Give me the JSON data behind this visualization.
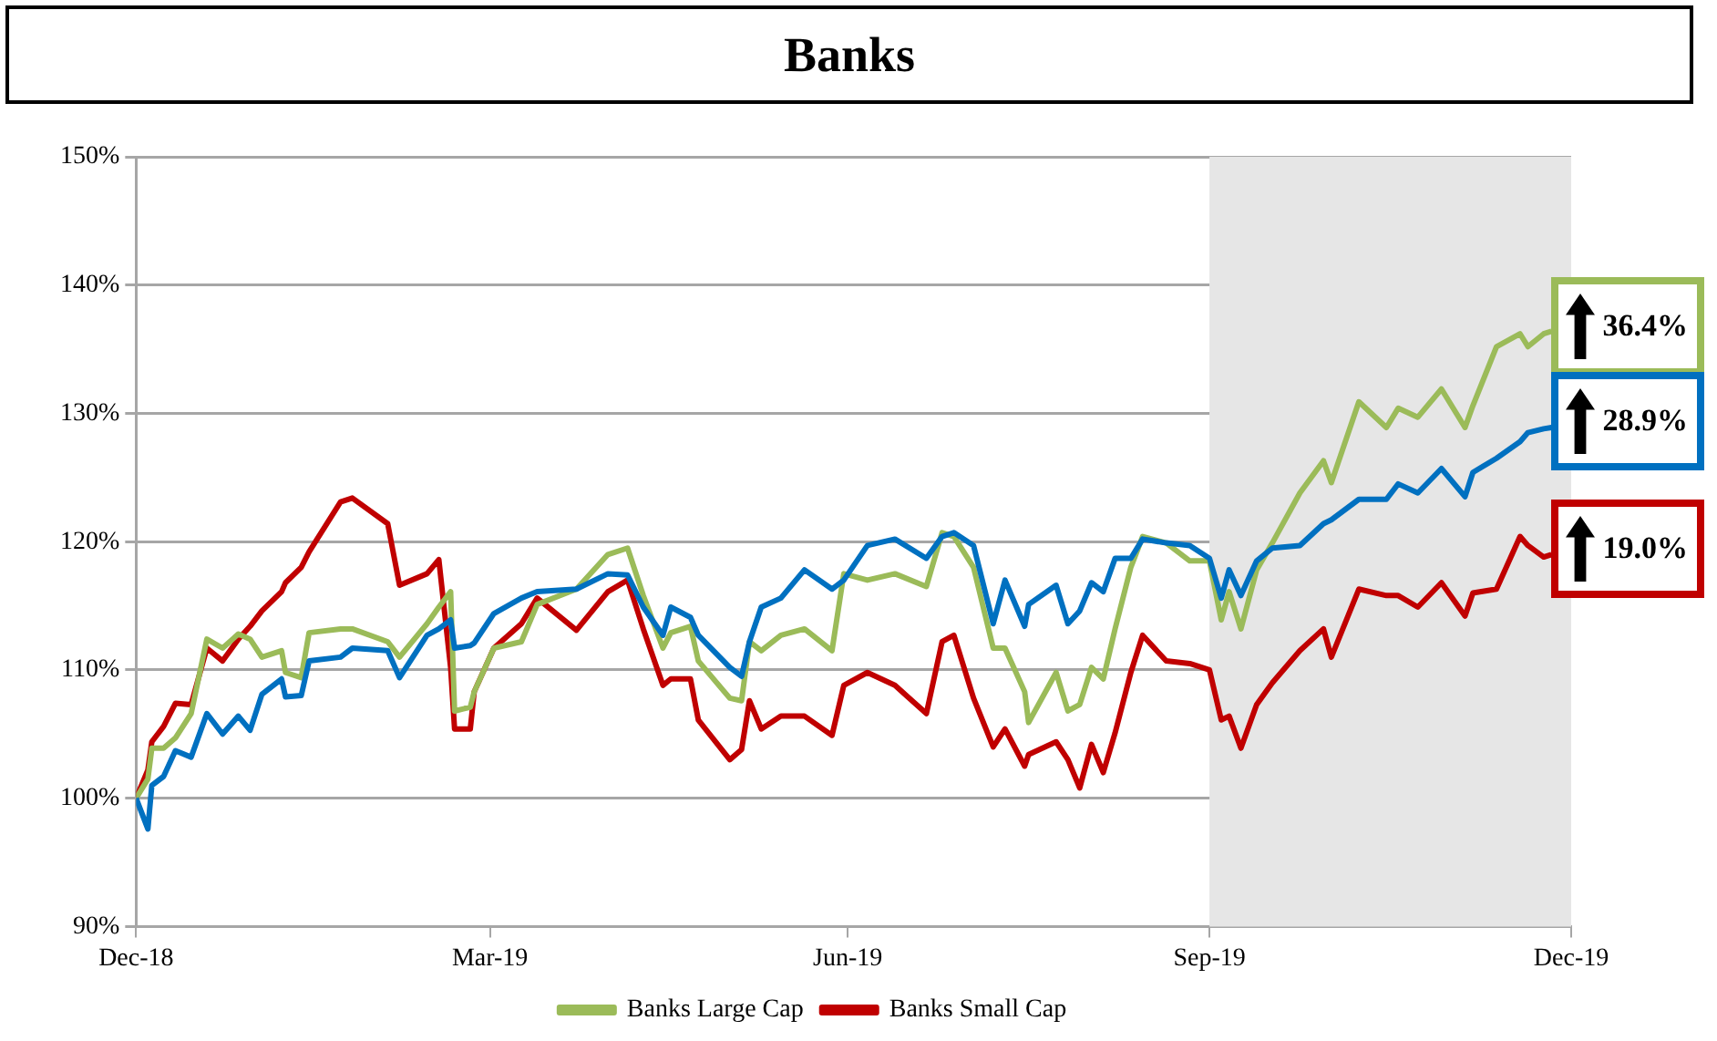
{
  "chart_data": {
    "type": "line",
    "title": "Banks",
    "x": [
      "2018-12-31",
      "2019-01-03",
      "2019-01-04",
      "2019-01-07",
      "2019-01-10",
      "2019-01-14",
      "2019-01-18",
      "2019-01-22",
      "2019-01-26",
      "2019-01-29",
      "2019-02-01",
      "2019-02-06",
      "2019-02-07",
      "2019-02-11",
      "2019-02-13",
      "2019-02-21",
      "2019-02-24",
      "2019-03-05",
      "2019-03-08",
      "2019-03-15",
      "2019-03-18",
      "2019-03-21",
      "2019-03-22",
      "2019-03-26",
      "2019-03-27",
      "2019-04-01",
      "2019-04-08",
      "2019-04-12",
      "2019-04-22",
      "2019-04-30",
      "2019-05-05",
      "2019-05-09",
      "2019-05-14",
      "2019-05-16",
      "2019-05-21",
      "2019-05-23",
      "2019-05-31",
      "2019-06-03",
      "2019-06-05",
      "2019-06-08",
      "2019-06-13",
      "2019-06-19",
      "2019-06-26",
      "2019-06-29",
      "2019-07-05",
      "2019-07-12",
      "2019-07-20",
      "2019-07-24",
      "2019-07-27",
      "2019-08-01",
      "2019-08-06",
      "2019-08-09",
      "2019-08-14",
      "2019-08-15",
      "2019-08-22",
      "2019-08-25",
      "2019-08-28",
      "2019-08-31",
      "2019-09-03",
      "2019-09-06",
      "2019-09-10",
      "2019-09-13",
      "2019-09-19",
      "2019-09-25",
      "2019-09-30",
      "2019-10-03",
      "2019-10-05",
      "2019-10-08",
      "2019-10-12",
      "2019-10-16",
      "2019-10-23",
      "2019-10-29",
      "2019-10-31",
      "2019-11-07",
      "2019-11-14",
      "2019-11-17",
      "2019-11-22",
      "2019-11-28",
      "2019-12-04",
      "2019-12-06",
      "2019-12-12",
      "2019-12-18",
      "2019-12-20",
      "2019-12-24",
      "2019-12-26"
    ],
    "series": [
      {
        "color": "#0070c0",
        "values": [
          100,
          97.6,
          101,
          101.7,
          103.7,
          103.2,
          106.6,
          105,
          106.4,
          105.3,
          108.1,
          109.3,
          107.9,
          108,
          110.7,
          111,
          111.7,
          111.5,
          109.4,
          112.7,
          113.2,
          113.9,
          111.7,
          111.9,
          112.1,
          114.4,
          115.6,
          116.1,
          116.3,
          117.5,
          117.4,
          114.9,
          112.7,
          114.9,
          114.1,
          112.7,
          110.2,
          109.5,
          112.2,
          114.9,
          115.6,
          117.8,
          116.3,
          117,
          119.7,
          120.2,
          118.7,
          120.4,
          120.7,
          119.7,
          113.6,
          117,
          113.4,
          115.1,
          116.6,
          113.6,
          114.6,
          116.8,
          116.1,
          118.7,
          118.7,
          120.2,
          119.9,
          119.7,
          118.7,
          115.6,
          117.8,
          115.8,
          118.5,
          119.5,
          119.7,
          121.4,
          121.7,
          123.3,
          123.3,
          124.5,
          123.8,
          125.7,
          123.5,
          125.4,
          126.5,
          127.8,
          128.5,
          128.8,
          128.9
        ]
      },
      {
        "name": "Banks Large Cap",
        "color": "#9bbb59",
        "values": [
          100,
          101.5,
          103.9,
          103.9,
          104.7,
          106.6,
          112.4,
          111.7,
          112.8,
          112.4,
          111,
          111.5,
          109.8,
          109.4,
          112.9,
          113.2,
          113.2,
          112.2,
          111,
          113.6,
          114.9,
          116.1,
          106.8,
          107.1,
          108.3,
          111.7,
          112.2,
          115.1,
          116.3,
          119,
          119.5,
          115.8,
          111.7,
          112.9,
          113.4,
          110.7,
          107.8,
          107.6,
          112.2,
          111.5,
          112.7,
          113.2,
          111.5,
          117.5,
          117,
          117.5,
          116.5,
          120.7,
          120.4,
          118,
          111.7,
          111.7,
          108.3,
          105.9,
          109.8,
          106.8,
          107.3,
          110.2,
          109.3,
          113.2,
          118,
          120.4,
          119.9,
          118.5,
          118.5,
          113.9,
          116.1,
          113.2,
          117.8,
          119.9,
          123.8,
          126.3,
          124.6,
          130.9,
          128.9,
          130.4,
          129.7,
          131.9,
          128.9,
          130.6,
          135.2,
          136.2,
          135.2,
          136.2,
          136.4
        ]
      },
      {
        "name": "Banks Small Cap",
        "color": "#c00000",
        "values": [
          100,
          102.2,
          104.4,
          105.6,
          107.4,
          107.3,
          111.7,
          110.7,
          112.4,
          113.4,
          114.6,
          116.1,
          116.8,
          118,
          119.2,
          123.1,
          123.4,
          121.4,
          116.6,
          117.5,
          118.6,
          110.2,
          105.4,
          105.4,
          108.3,
          111.7,
          113.6,
          115.6,
          113.1,
          116.1,
          117,
          113.2,
          108.8,
          109.3,
          109.3,
          106.1,
          103,
          103.8,
          107.6,
          105.4,
          106.4,
          106.4,
          104.9,
          108.8,
          109.8,
          108.8,
          106.6,
          112.2,
          112.7,
          107.8,
          104,
          105.4,
          102.5,
          103.4,
          104.4,
          103,
          100.8,
          104.2,
          102,
          105.1,
          109.8,
          112.7,
          110.7,
          110.5,
          110,
          106.1,
          106.4,
          103.9,
          107.3,
          109,
          111.5,
          113.2,
          111,
          116.3,
          115.8,
          115.8,
          114.9,
          116.8,
          114.2,
          116,
          116.3,
          120.4,
          119.7,
          118.8,
          119
        ]
      }
    ],
    "xlim": [
      "2018-12-31",
      "2019-12-31"
    ],
    "xticks": [
      {
        "value": "2018-12-31",
        "label": "Dec-18"
      },
      {
        "value": "2019-03-31",
        "label": "Mar-19"
      },
      {
        "value": "2019-06-30",
        "label": "Jun-19"
      },
      {
        "value": "2019-09-30",
        "label": "Sep-19"
      },
      {
        "value": "2019-12-31",
        "label": "Dec-19"
      }
    ],
    "ylim": [
      90,
      150
    ],
    "yticks": [
      {
        "value": 90,
        "label": "90%"
      },
      {
        "value": 100,
        "label": "100%"
      },
      {
        "value": 110,
        "label": "110%"
      },
      {
        "value": 120,
        "label": "120%"
      },
      {
        "value": 130,
        "label": "130%"
      },
      {
        "value": 140,
        "label": "140%"
      },
      {
        "value": 150,
        "label": "150%"
      }
    ],
    "bands": [
      {
        "axis": "x",
        "from": "2019-09-30",
        "to": "2019-12-31",
        "color": "#e6e6e6"
      }
    ],
    "annotations": [
      {
        "text": "36.4%",
        "x": "2019-12-26",
        "y": 136.4
      },
      {
        "text": "28.9%",
        "x": "2019-12-26",
        "y": 128.9
      },
      {
        "text": "19.0%",
        "x": "2019-12-26",
        "y": 119
      }
    ],
    "grid": "y",
    "legend": "bottom",
    "marker": "none",
    "line_style": "solid"
  }
}
